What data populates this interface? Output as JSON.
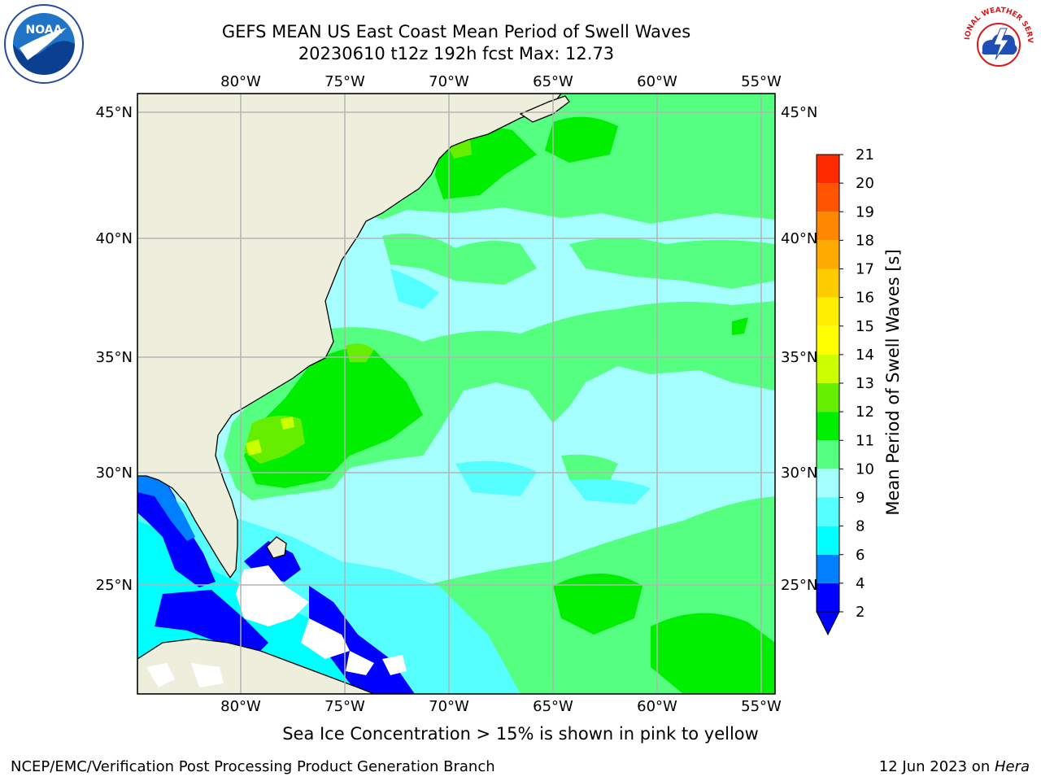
{
  "header": {
    "title_line1": "GEFS MEAN US East Coast Mean Period of Swell Waves",
    "title_line2": "20230610 t12z 192h fcst   Max: 12.73"
  },
  "map": {
    "lon_labels": [
      "80°W",
      "75°W",
      "70°W",
      "65°W",
      "60°W",
      "55°W"
    ],
    "lat_labels": [
      "45°N",
      "40°N",
      "35°N",
      "30°N",
      "25°N"
    ]
  },
  "colorbar": {
    "label": "Mean Period of Swell Waves [s]",
    "ticks": [
      "2",
      "4",
      "6",
      "8",
      "9",
      "10",
      "11",
      "12",
      "13",
      "14",
      "15",
      "16",
      "17",
      "18",
      "19",
      "20",
      "21"
    ],
    "colors": [
      "#0000ff",
      "#0080ff",
      "#00ffff",
      "#55ffff",
      "#a5ffff",
      "#55ff7f",
      "#00ee00",
      "#66ee00",
      "#ccff00",
      "#ffff00",
      "#ffee00",
      "#ffcc00",
      "#ffaa00",
      "#ff8800",
      "#ff5500",
      "#ff2a00",
      "#ff0000"
    ],
    "extend_color": "#0000ff"
  },
  "colors": {
    "land": "#eeeedc",
    "ocean_base": "#a5ffff",
    "grid": "#b4b4b4"
  },
  "note": "Sea Ice Concentration > 15% is shown in pink to yellow",
  "footer": {
    "left": "NCEP/EMC/Verification Post Processing Product Generation Branch",
    "right_date": "12 Jun 2023 on ",
    "right_host": "Hera"
  },
  "logos": {
    "noaa": "NOAA",
    "nws": "NATIONAL WEATHER SERVICE"
  }
}
